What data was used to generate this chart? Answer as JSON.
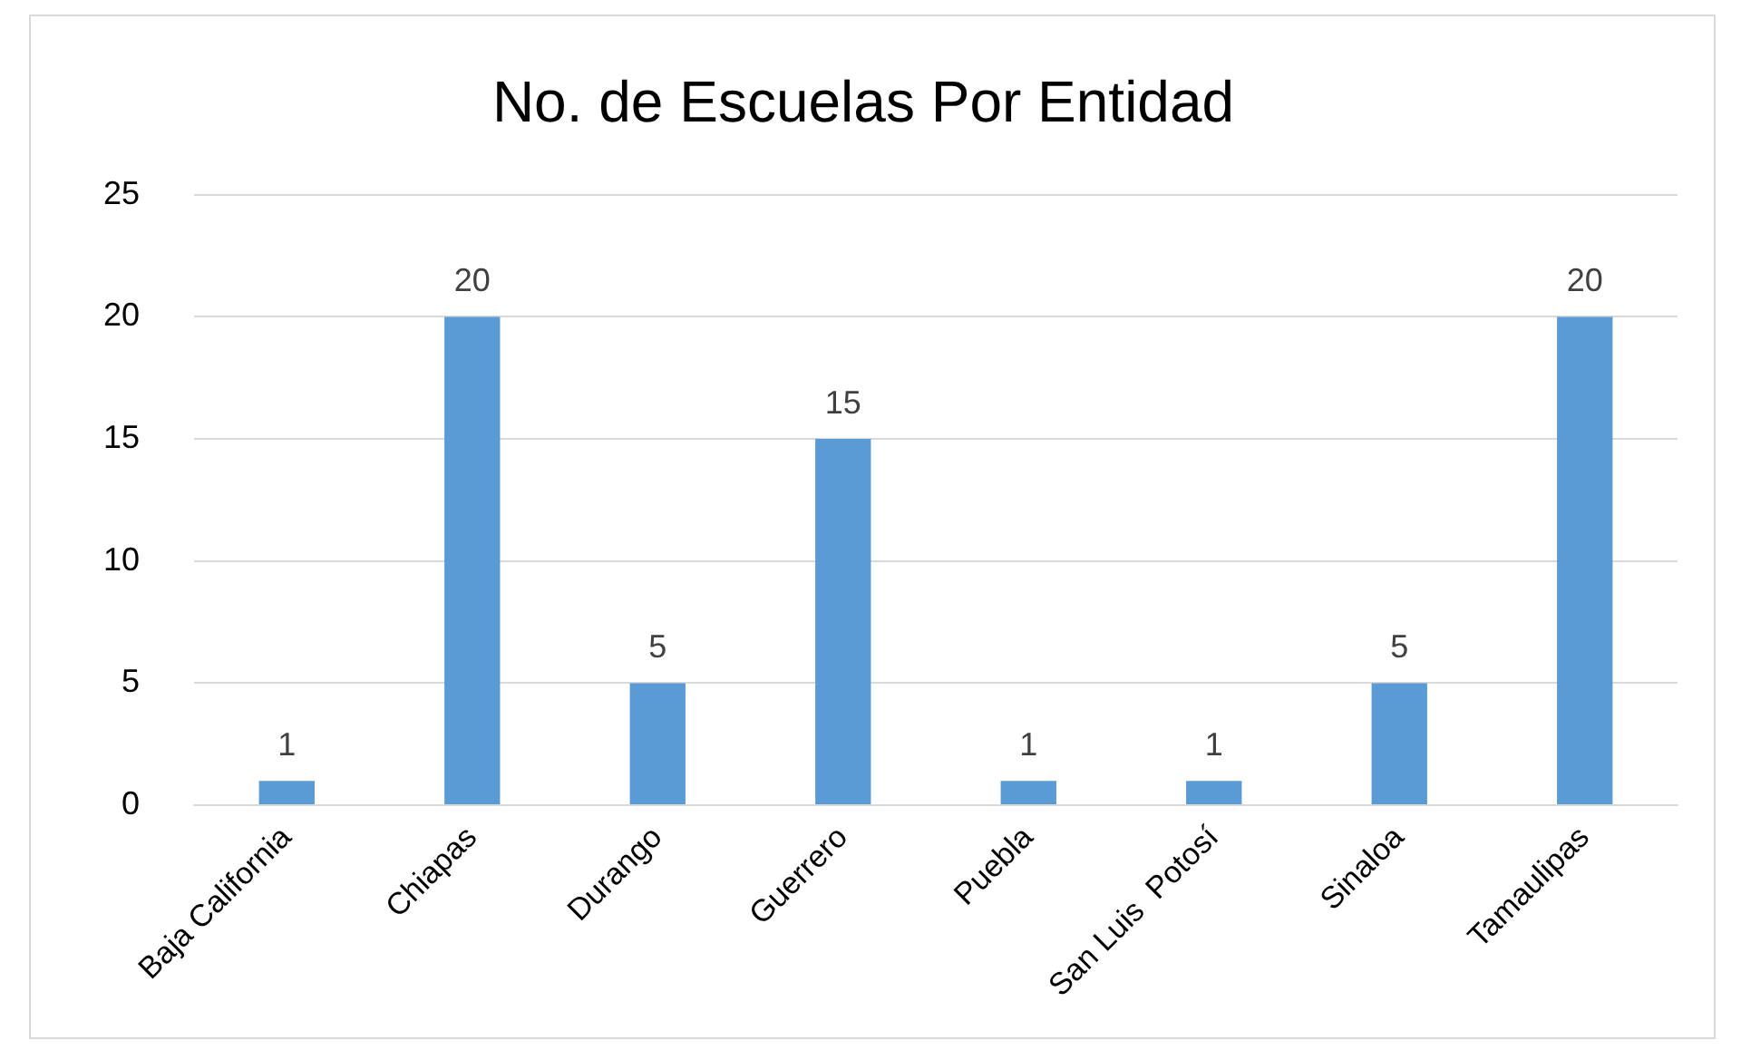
{
  "chart_data": {
    "type": "bar",
    "title": "No. de Escuelas Por Entidad",
    "categories": [
      "Baja California",
      "Chiapas",
      "Durango",
      "Guerrero",
      "Puebla",
      "San Luis  Potosí",
      "Sinaloa",
      "Tamaulipas"
    ],
    "values": [
      1,
      20,
      5,
      15,
      1,
      1,
      5,
      20
    ],
    "color": "#5b9bd5",
    "ylim": [
      0,
      25
    ],
    "yticks": [
      0,
      5,
      10,
      15,
      20,
      25
    ],
    "grid": "y",
    "data_labels": true
  }
}
